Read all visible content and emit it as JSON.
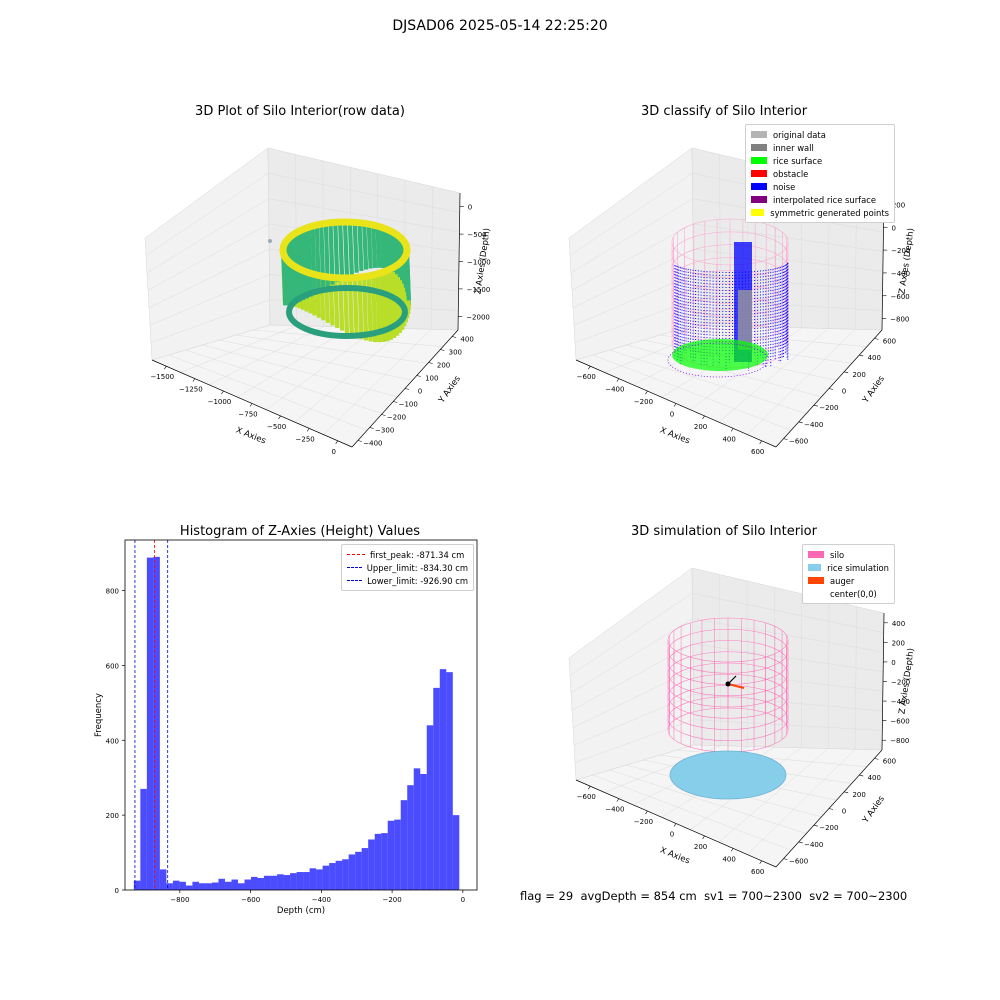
{
  "suptitle": "DJSAD06 2025-05-14 22:25:20",
  "footer": {
    "flag": "flag = 29",
    "avg_depth": "avgDepth = 854 cm",
    "sv1": "sv1 = 700~2300",
    "sv2": "sv2 = 700~2300"
  },
  "chart_data": [
    {
      "type": "scatter",
      "projection": "3d",
      "title": "3D Plot of Silo Interior(row data)",
      "xlabel": "X Axies",
      "ylabel": "Y Axies",
      "zlabel": "Z Axies (Depth)",
      "xticks": [
        "−1500",
        "−1250",
        "−1000",
        "−750",
        "−500",
        "−250",
        "0"
      ],
      "yticks": [
        "−400",
        "−300",
        "−200",
        "−100",
        "0",
        "100",
        "200",
        "300",
        "400"
      ],
      "zticks": [
        "0",
        "−500",
        "−1000",
        "−1500",
        "−2000"
      ],
      "colormap": "viridis",
      "description_of_points": "ring-shaped band of points coloured by depth (yellow near top, green lower)"
    },
    {
      "type": "scatter",
      "projection": "3d",
      "title": "3D classify of Silo Interior",
      "xlabel": "X Axies",
      "ylabel": "Y Axies",
      "zlabel": "Z Axies (Depth)",
      "xticks": [
        "−600",
        "−400",
        "−200",
        "0",
        "200",
        "400",
        "600"
      ],
      "yticks": [
        "−600",
        "−400",
        "−200",
        "0",
        "200",
        "400",
        "600"
      ],
      "zticks": [
        "200",
        "0",
        "−200",
        "−400",
        "−600",
        "−800"
      ],
      "legend": [
        {
          "label": "original data",
          "color": "#b3b3b3"
        },
        {
          "label": "inner wall",
          "color": "#808080"
        },
        {
          "label": "rice surface",
          "color": "#00ff00"
        },
        {
          "label": "obstacle",
          "color": "#ff0000"
        },
        {
          "label": "noise",
          "color": "#0000ff"
        },
        {
          "label": "interpolated rice surface",
          "color": "#800080"
        },
        {
          "label": "symmetric generated points",
          "color": "#ffff00"
        }
      ]
    },
    {
      "type": "bar",
      "title": "Histogram of Z-Axies (Height) Values",
      "xlabel": "Depth (cm)",
      "ylabel": "Frequency",
      "xlim": [
        -955,
        40
      ],
      "ylim": [
        0,
        935
      ],
      "xticks": [
        "−800",
        "−600",
        "−400",
        "−200",
        "0"
      ],
      "yticks": [
        "0",
        "200",
        "400",
        "600",
        "800"
      ],
      "bin_width": 18.4,
      "bin_start": -930,
      "values": [
        25,
        270,
        888,
        890,
        55,
        18,
        25,
        22,
        12,
        22,
        18,
        18,
        20,
        30,
        22,
        28,
        18,
        28,
        35,
        32,
        38,
        38,
        42,
        40,
        45,
        48,
        48,
        58,
        55,
        65,
        72,
        78,
        82,
        95,
        102,
        112,
        135,
        150,
        152,
        185,
        188,
        240,
        280,
        325,
        310,
        440,
        540,
        590,
        582,
        200
      ],
      "color": "#0000ff",
      "vlines": [
        {
          "label": "first_peak: -871.34 cm",
          "x": -871.34,
          "color": "#ff0000"
        },
        {
          "label": "Upper_limit: -834.30 cm",
          "x": -834.3,
          "color": "#0000cd"
        },
        {
          "label": "Lower_limit: -926.90 cm",
          "x": -926.9,
          "color": "#0000cd"
        }
      ]
    },
    {
      "type": "scatter",
      "projection": "3d",
      "title": "3D simulation of Silo Interior",
      "xlabel": "X Axies",
      "ylabel": "Y Axies",
      "zlabel": "Z Axies (Depth)",
      "xticks": [
        "−600",
        "−400",
        "−200",
        "0",
        "200",
        "400",
        "600"
      ],
      "yticks": [
        "−600",
        "−400",
        "−200",
        "0",
        "200",
        "400",
        "600"
      ],
      "zticks": [
        "400",
        "200",
        "0",
        "−200",
        "−400",
        "−600",
        "−800"
      ],
      "legend": [
        {
          "label": "silo",
          "color": "#ff69b4"
        },
        {
          "label": "rice simulation",
          "color": "#87ceeb"
        },
        {
          "label": "auger",
          "color": "#ff4500"
        },
        {
          "label": "center(0,0)",
          "color": ""
        }
      ]
    }
  ]
}
